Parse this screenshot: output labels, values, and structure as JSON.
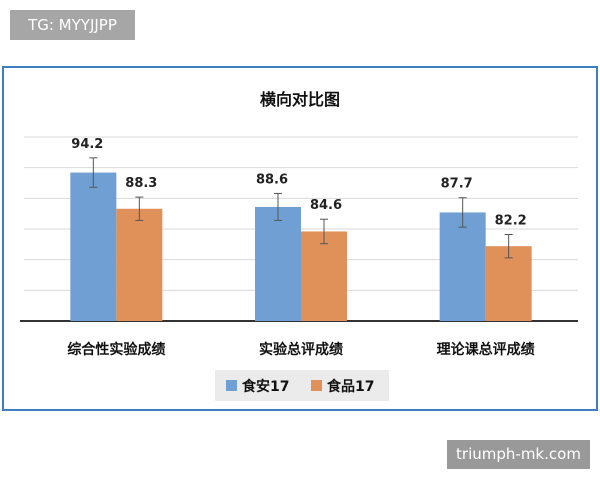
{
  "badge": {
    "text": "TG: MYYJJPP"
  },
  "watermark": {
    "text": "triumph-mk.com"
  },
  "colors": {
    "series_1": "#6f9fd3",
    "series_2": "#e0915a",
    "frame": "#3f7fc1"
  },
  "chart_data": {
    "type": "bar",
    "title": "横向对比图",
    "categories": [
      "综合性实验成绩",
      "实验总评成绩",
      "理论课总评成绩"
    ],
    "series": [
      {
        "name": "食安17",
        "values": [
          94.2,
          88.6,
          87.7
        ]
      },
      {
        "name": "食品17",
        "values": [
          88.3,
          84.6,
          82.2
        ]
      }
    ],
    "error_bars": [
      [
        2.4,
        2.2,
        2.4
      ],
      [
        1.9,
        2.0,
        1.9
      ]
    ],
    "ylim": [
      70,
      100
    ],
    "grid": true,
    "legend_position": "bottom",
    "xlabel": "",
    "ylabel": ""
  }
}
